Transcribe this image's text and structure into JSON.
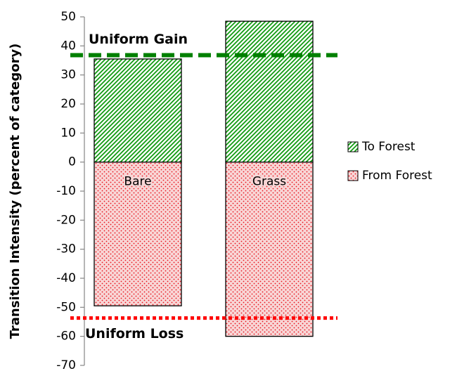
{
  "chart_data": {
    "type": "bar",
    "stacked": true,
    "y_label": "Transition Intensity (percent of category)",
    "categories": [
      "Bare",
      "Grass"
    ],
    "series": [
      {
        "name": "To Forest",
        "color": "#109a10",
        "pattern": "hatch",
        "values": [
          35.5,
          48.5
        ]
      },
      {
        "name": "From Forest",
        "color": "#e8141e",
        "pattern": "dots",
        "values": [
          -49.5,
          -60
        ]
      }
    ],
    "reference_lines": [
      {
        "label": "Uniform Gain",
        "value": 36.8,
        "color": "#008000",
        "style": "dashed"
      },
      {
        "label": "Uniform Loss",
        "value": -53.7,
        "color": "#ff0000",
        "style": "dotted"
      }
    ],
    "ylim": [
      -70,
      50
    ],
    "yticks": [
      50,
      40,
      30,
      20,
      10,
      0,
      -10,
      -20,
      -30,
      -40,
      -50,
      -60,
      -70
    ],
    "legend": "right",
    "grid": false
  }
}
